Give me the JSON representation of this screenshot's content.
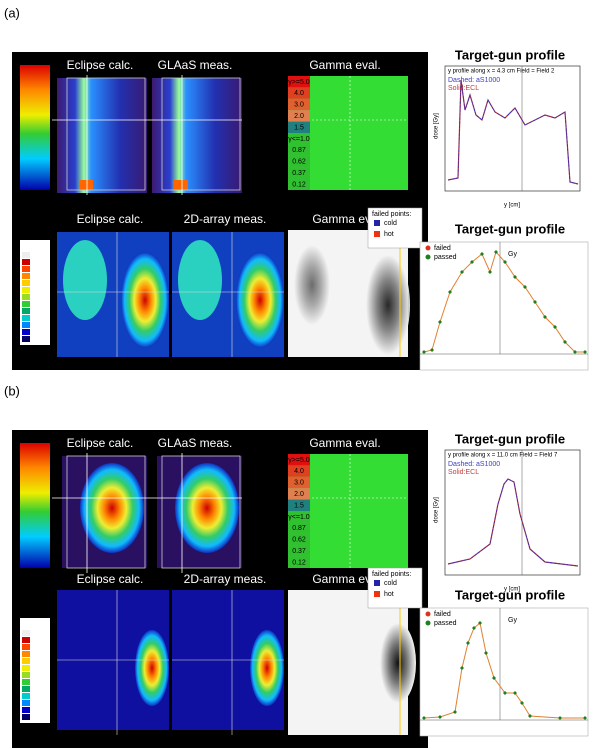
{
  "panels": [
    {
      "label": "(a)",
      "top_titles": [
        "Eclipse calc.",
        "GLAaS meas.",
        "Gamma eval."
      ],
      "bottom_titles": [
        "Eclipse calc.",
        "2D-array meas.",
        "Gamma eval."
      ],
      "gamma_scale": [
        "γ>=5.0",
        "4.0",
        "3.0",
        "2.0",
        "1.5",
        "γ<=1.0",
        "0.87",
        "0.62",
        "0.37",
        "0.12"
      ],
      "failed_legend": {
        "title": "failed points:",
        "items": [
          "cold",
          "hot"
        ]
      },
      "profile_title": "Target-gun profile",
      "profile_header": "y profile along x =   4.3 cm    Field = Field 2",
      "profile_legend": [
        "Dashed:  aS1000",
        "Solid:ECL"
      ],
      "profile_xlabel": "y [cm]",
      "profile_ylabel": "dose [Gy]",
      "profile2_title": "Target-gun profile",
      "profile2_legend": [
        "failed",
        "passed"
      ],
      "profile2_unit": "Gy"
    },
    {
      "label": "(b)",
      "top_titles": [
        "Eclipse calc.",
        "GLAaS meas.",
        "Gamma eval."
      ],
      "bottom_titles": [
        "Eclipse calc.",
        "2D-array meas.",
        "Gamma eval."
      ],
      "gamma_scale": [
        "γ>=5.0",
        "4.0",
        "3.0",
        "2.0",
        "1.5",
        "γ<=1.0",
        "0.87",
        "0.62",
        "0.37",
        "0.12"
      ],
      "failed_legend": {
        "title": "failed points:",
        "items": [
          "cold",
          "hot"
        ]
      },
      "profile_title": "Target-gun profile",
      "profile_header": "y profile along x =  11.0 cm    Field = Field 7",
      "profile_legend": [
        "Dashed:  aS1000",
        "Solid:ECL"
      ],
      "profile_xlabel": "y [cm]",
      "profile_ylabel": "dose [Gy]",
      "profile2_title": "Target-gun profile",
      "profile2_legend": [
        "failed",
        "passed"
      ],
      "profile2_unit": "Gy"
    }
  ]
}
